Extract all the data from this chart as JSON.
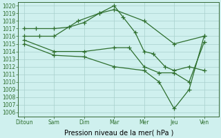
{
  "background_color": "#cff0ee",
  "grid_color": "#a8d0cc",
  "line_color": "#2d6e2d",
  "x_labels": [
    "Ditoun",
    "Sam",
    "Dim",
    "Mar",
    "Mer",
    "Jeu",
    "Ven"
  ],
  "ylim": [
    1005.5,
    1020.5
  ],
  "yticks": [
    1006,
    1007,
    1008,
    1009,
    1010,
    1011,
    1012,
    1013,
    1014,
    1015,
    1016,
    1017,
    1018,
    1019,
    1020
  ],
  "xlabel": "Pression niveau de la mer( hPa )",
  "s1_x": [
    0,
    0.4,
    1.0,
    1.5,
    2.0,
    2.5,
    3.0,
    4.0,
    5.0,
    6.0
  ],
  "s1_y": [
    1017.0,
    1017.0,
    1017.0,
    1017.2,
    1017.8,
    1019.0,
    1019.5,
    1018.0,
    1015.0,
    1016.0
  ],
  "s2_x": [
    0,
    0.5,
    1.0,
    1.8,
    2.5,
    3.0,
    3.3,
    3.7,
    4.0,
    4.3,
    4.7,
    5.0,
    5.5,
    6.0
  ],
  "s2_y": [
    1016.0,
    1016.0,
    1016.0,
    1018.0,
    1019.0,
    1020.0,
    1018.5,
    1016.5,
    1014.0,
    1013.7,
    1012.0,
    1011.5,
    1012.0,
    1011.5
  ],
  "s3_x": [
    0,
    1.0,
    2.0,
    3.0,
    3.5,
    4.0,
    4.5,
    5.0,
    5.5,
    6.0
  ],
  "s3_y": [
    1015.5,
    1014.0,
    1014.0,
    1014.5,
    1014.5,
    1012.0,
    1011.2,
    1011.2,
    1010.0,
    1015.2
  ],
  "s4_x": [
    0,
    1.0,
    2.0,
    3.0,
    4.0,
    4.5,
    5.0,
    5.5,
    6.0
  ],
  "s4_y": [
    1015.0,
    1013.5,
    1013.3,
    1012.0,
    1011.5,
    1010.0,
    1006.5,
    1009.0,
    1016.0
  ]
}
